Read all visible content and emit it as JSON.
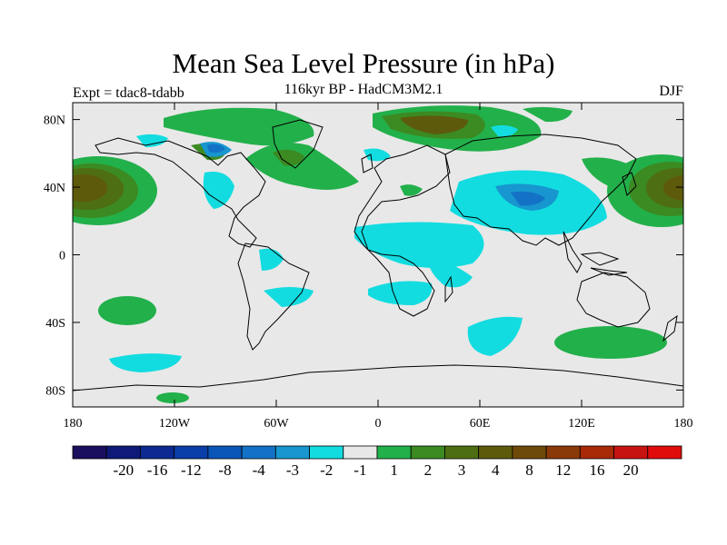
{
  "title": "Mean Sea Level Pressure (in hPa)",
  "subtitle": "116kyr BP - HadCM3M2.1",
  "experiment": "Expt = tdac8-tdabb",
  "season": "DJF",
  "map": {
    "background_color": "#e8e8e8",
    "lon_range": [
      -180,
      180
    ],
    "lat_range": [
      -90,
      90
    ],
    "x_ticks": [
      {
        "lon": -180,
        "label": "180"
      },
      {
        "lon": -120,
        "label": "120W"
      },
      {
        "lon": -60,
        "label": "60W"
      },
      {
        "lon": 0,
        "label": "0"
      },
      {
        "lon": 60,
        "label": "60E"
      },
      {
        "lon": 120,
        "label": "120E"
      },
      {
        "lon": 180,
        "label": "180"
      }
    ],
    "y_ticks": [
      {
        "lat": 80,
        "label": "80N"
      },
      {
        "lat": 40,
        "label": "40N"
      },
      {
        "lat": 0,
        "label": "0"
      },
      {
        "lat": -40,
        "label": "40S"
      },
      {
        "lat": -80,
        "label": "80S"
      }
    ]
  },
  "colorbar": {
    "colors": [
      "#1a0f5e",
      "#0e1a78",
      "#0c2a92",
      "#0a3ea8",
      "#0a55b8",
      "#1372c6",
      "#1796cf",
      "#12dce0",
      "#e8e8e8",
      "#22b04a",
      "#3c8a22",
      "#4e6e12",
      "#5e5a0c",
      "#6e4a0a",
      "#8a3a08",
      "#a82a06",
      "#c81410",
      "#e00c0c"
    ],
    "labels": [
      "-20",
      "-16",
      "-12",
      "-8",
      "-4",
      "-3",
      "-2",
      "-1",
      "1",
      "2",
      "3",
      "4",
      "8",
      "12",
      "16",
      "20"
    ]
  }
}
